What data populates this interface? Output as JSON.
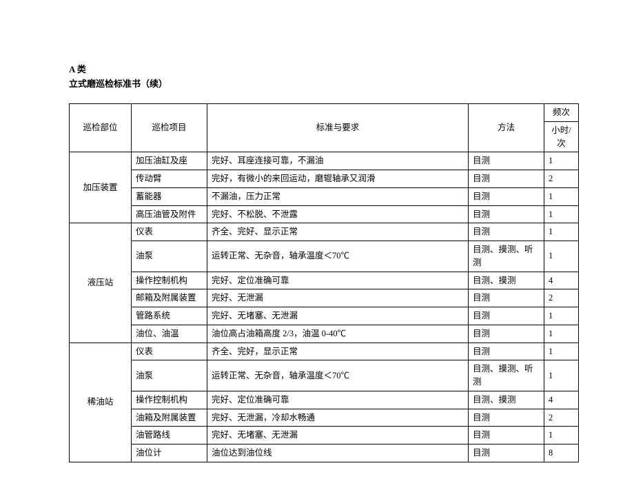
{
  "header": {
    "category": "A 类",
    "title": "立式磨巡检标准书（续）"
  },
  "columns": {
    "c1": "巡检部位",
    "c2": "巡检项目",
    "c3": "标准与要求",
    "c4": "方法",
    "c5a": "频次",
    "c5b": "小时/次"
  },
  "groups": [
    {
      "name": "加压装置",
      "rows": [
        {
          "item": "加压油缸及座",
          "std": "完好、耳座连接可靠，不漏油",
          "method": "目测",
          "freq": "1"
        },
        {
          "item": "传动臂",
          "std": "完好，有微小的来回运动，磨辊轴承又润滑",
          "method": "目测",
          "freq": "2"
        },
        {
          "item": "蓄能器",
          "std": "不漏油，压力正常",
          "method": "目测",
          "freq": "1"
        },
        {
          "item": "高压油管及附件",
          "std": "完好、不松脱、不泄露",
          "method": "目测",
          "freq": "1"
        }
      ]
    },
    {
      "name": "液压站",
      "rows": [
        {
          "item": "仪表",
          "std": "齐全、完好、显示正常",
          "method": "目测",
          "freq": "1"
        },
        {
          "item": "油泵",
          "std": "运转正常、无杂音，轴承温度＜70℃",
          "method": "目测、摸测、听测",
          "freq": "1"
        },
        {
          "item": "操作控制机构",
          "std": "完好、定位准确可靠",
          "method": "目测、摸测",
          "freq": "4"
        },
        {
          "item": "邮箱及附属装置",
          "std": "完好、无泄漏",
          "method": "目测",
          "freq": "2"
        },
        {
          "item": "管路系统",
          "std": "完好、无堵塞、无泄漏",
          "method": "目测",
          "freq": "1"
        },
        {
          "item": "油位、油温",
          "std": "油位高占油箱高度 2/3，油温 0-40℃",
          "method": "目测",
          "freq": "1"
        }
      ]
    },
    {
      "name": "稀油站",
      "rows": [
        {
          "item": "仪表",
          "std": "齐全、完好，显示正常",
          "method": "目测",
          "freq": "1"
        },
        {
          "item": "油泵",
          "std": "运转正常、无杂音，轴承温度＜70℃",
          "method": "目测、摸测、听测",
          "freq": "1"
        },
        {
          "item": "操作控制机构",
          "std": "完好、定位准确可靠",
          "method": "目测、摸测",
          "freq": "4"
        },
        {
          "item": "油箱及附属装置",
          "std": "完好、无泄漏，冷却水畅通",
          "method": "目测",
          "freq": "2"
        },
        {
          "item": "油管路线",
          "std": "完好、无堵塞、无泄漏",
          "method": "目测",
          "freq": "1"
        },
        {
          "item": "油位计",
          "std": "油位达到油位线",
          "method": "目测",
          "freq": "8"
        }
      ]
    }
  ]
}
